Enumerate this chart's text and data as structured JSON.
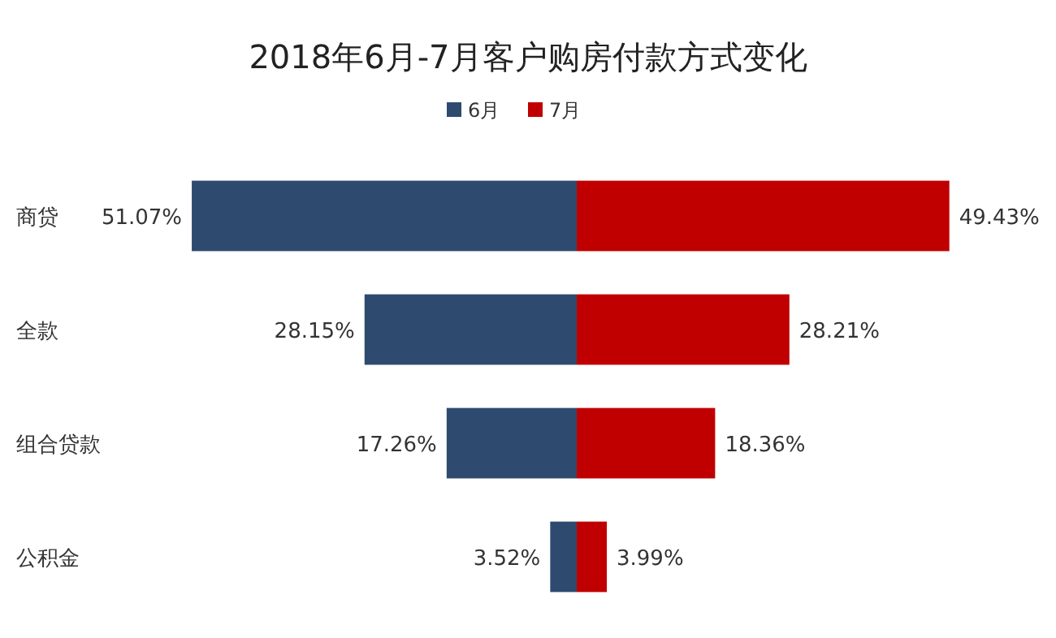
{
  "chart_data": [
    {
      "type": "bar",
      "orientation": "horizontal",
      "title": "2018年6月-7月客户购房付款方式变化",
      "categories": [
        "商贷",
        "全款",
        "组合贷款",
        "公积金"
      ],
      "xlim": [
        51.07,
        0
      ],
      "tick_labels": "y",
      "legend": "top",
      "series": [
        {
          "name": "6月",
          "color": "#2e4a6f",
          "values": [
            51.07,
            28.15,
            17.26,
            3.52
          ],
          "value_labels": [
            "51.07%",
            "28.15%",
            "17.26%",
            "3.52%"
          ]
        }
      ]
    },
    {
      "type": "bar",
      "orientation": "horizontal",
      "categories": [
        null,
        null,
        null,
        null
      ],
      "xlim": [
        0,
        49.43
      ],
      "tick_labels": false,
      "legend": "top",
      "series": [
        {
          "name": "7月",
          "color": "#c00000",
          "values": [
            49.43,
            28.21,
            18.36,
            3.99
          ],
          "value_labels": [
            "49.43%",
            "28.21%",
            "18.36%",
            "3.99%"
          ]
        }
      ]
    }
  ]
}
